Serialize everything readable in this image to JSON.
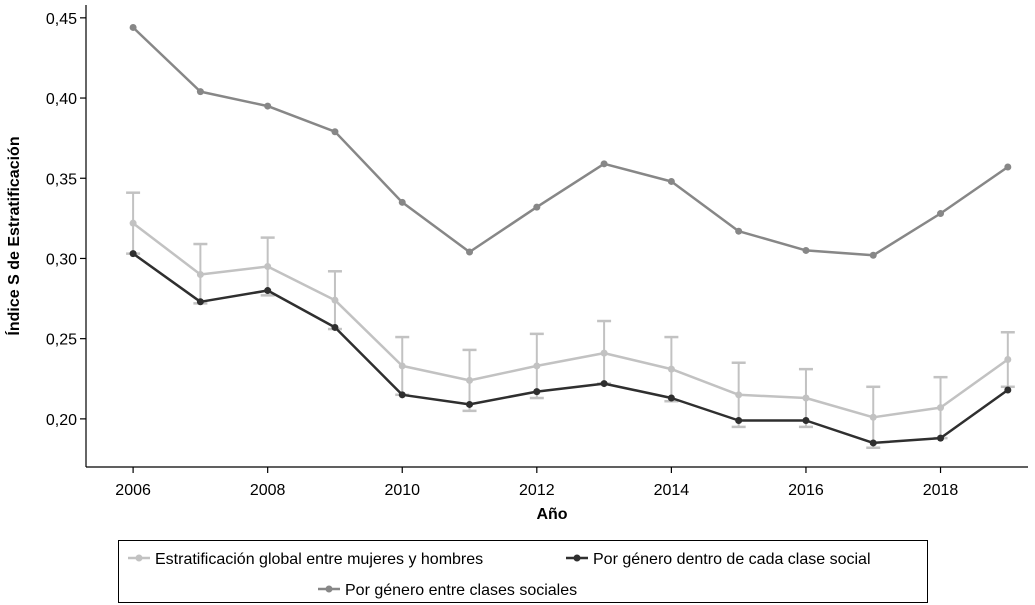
{
  "chart_data": {
    "type": "line",
    "xlabel": "Año",
    "ylabel": "Índice S de Estratificación",
    "xlim": [
      2005.3,
      2019.3
    ],
    "ylim": [
      0.17,
      0.458
    ],
    "x_ticks": [
      2006,
      2008,
      2010,
      2012,
      2014,
      2016,
      2018
    ],
    "x_tick_labels": [
      "2006",
      "2008",
      "2010",
      "2012",
      "2014",
      "2016",
      "2018"
    ],
    "y_ticks": [
      0.2,
      0.25,
      0.3,
      0.35,
      0.4,
      0.45
    ],
    "y_tick_labels": [
      "0,20",
      "0,25",
      "0,30",
      "0,35",
      "0,40",
      "0,45"
    ],
    "grid": false,
    "legend_position": "bottom",
    "x": [
      2006,
      2007,
      2008,
      2009,
      2010,
      2011,
      2012,
      2013,
      2014,
      2015,
      2016,
      2017,
      2018,
      2019
    ],
    "series": [
      {
        "name": "Estratificación global entre mujeres y hombres",
        "color": "#c2c2c2",
        "values": [
          0.322,
          0.29,
          0.295,
          0.274,
          0.233,
          0.224,
          0.233,
          0.241,
          0.231,
          0.215,
          0.213,
          0.201,
          0.207,
          0.237
        ],
        "error_upper": [
          0.341,
          0.309,
          0.313,
          0.292,
          0.251,
          0.243,
          0.253,
          0.261,
          0.251,
          0.235,
          0.231,
          0.22,
          0.226,
          0.254
        ],
        "error_lower": [
          0.303,
          0.272,
          0.277,
          0.256,
          0.215,
          0.205,
          0.213,
          0.222,
          0.211,
          0.195,
          0.195,
          0.182,
          0.188,
          0.22
        ]
      },
      {
        "name": "Por género dentro de cada clase social",
        "color": "#2f2f2f",
        "values": [
          0.303,
          0.273,
          0.28,
          0.257,
          0.215,
          0.209,
          0.217,
          0.222,
          0.213,
          0.199,
          0.199,
          0.185,
          0.188,
          0.218
        ]
      },
      {
        "name": "Por género entre clases sociales",
        "color": "#878787",
        "values": [
          0.444,
          0.404,
          0.395,
          0.379,
          0.335,
          0.304,
          0.332,
          0.359,
          0.348,
          0.317,
          0.305,
          0.302,
          0.328,
          0.357
        ]
      }
    ]
  }
}
